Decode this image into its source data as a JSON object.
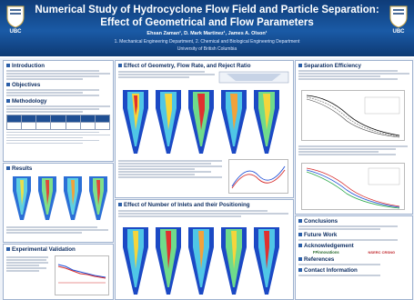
{
  "header": {
    "title_line1": "Numerical Study of Hydrocyclone Flow Field and Particle Separation:",
    "title_line2": "Effect of Geometrical and Flow Parameters",
    "authors": "Ehsan Zaman¹, D. Mark Martinez¹, James A. Olson¹",
    "affiliation": "1. Mechanical Engineering Department, 2. Chemical and Biological Engineering Department",
    "university": "University of British Columbia",
    "logo_left": "UBC",
    "logo_right": "UBC"
  },
  "sections": {
    "introduction": "Introduction",
    "objectives": "Objectives",
    "methodology": "Methodology",
    "results": "Results",
    "experimental_validation": "Experimental Validation",
    "effect_geometry": "Effect of Geometry, Flow Rate, and Reject Ratio",
    "effect_inlets": "Effect of Number of Inlets and their Positioning",
    "separation_efficiency": "Separation Efficiency",
    "conclusions": "Conclusions",
    "future_work": "Future Work",
    "acknowledgement": "Acknowledgement",
    "references": "References",
    "contact": "Contact Information"
  },
  "sponsors": {
    "fpinnovations": "FPinnovations",
    "nserc": "NSERC CRSNG"
  },
  "colors": {
    "banner": "#1a5aa6",
    "accent": "#2a5ea8",
    "panel_border": "#9fb2cf"
  }
}
